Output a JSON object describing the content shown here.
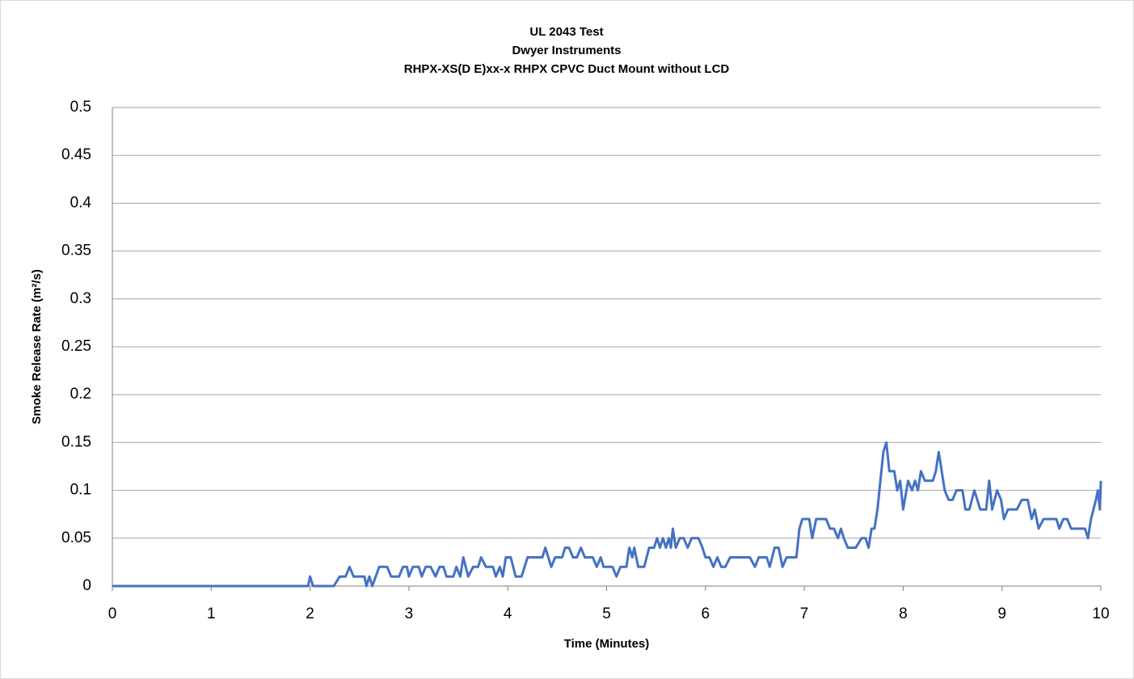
{
  "chart_data": {
    "type": "line",
    "title": [
      "UL 2043 Test",
      "Dwyer Instruments",
      "RHPX-XS(D E)xx-x RHPX CPVC Duct Mount without LCD"
    ],
    "xlabel": "Time (Minutes)",
    "ylabel": "Smoke Release Rate (m²/s)",
    "xlim": [
      0,
      10
    ],
    "xticks": [
      0,
      1,
      2,
      3,
      4,
      5,
      6,
      7,
      8,
      9,
      10
    ],
    "ylim": [
      0,
      0.5
    ],
    "yticks": [
      0,
      0.05,
      0.1,
      0.15,
      0.2,
      0.25,
      0.3,
      0.35,
      0.4,
      0.45,
      0.5
    ],
    "grid": true,
    "x": [
      0,
      1.98,
      2.0,
      2.03,
      2.24,
      2.3,
      2.36,
      2.4,
      2.44,
      2.55,
      2.57,
      2.6,
      2.63,
      2.7,
      2.78,
      2.82,
      2.9,
      2.94,
      2.98,
      3.0,
      3.04,
      3.1,
      3.13,
      3.17,
      3.22,
      3.27,
      3.31,
      3.35,
      3.38,
      3.45,
      3.48,
      3.52,
      3.55,
      3.6,
      3.65,
      3.7,
      3.73,
      3.78,
      3.85,
      3.88,
      3.92,
      3.95,
      3.98,
      4.03,
      4.08,
      4.14,
      4.2,
      4.35,
      4.38,
      4.44,
      4.48,
      4.55,
      4.58,
      4.62,
      4.66,
      4.7,
      4.74,
      4.78,
      4.86,
      4.9,
      4.94,
      4.97,
      5.06,
      5.1,
      5.14,
      5.2,
      5.23,
      5.26,
      5.28,
      5.32,
      5.38,
      5.43,
      5.48,
      5.51,
      5.54,
      5.57,
      5.6,
      5.63,
      5.65,
      5.67,
      5.7,
      5.74,
      5.78,
      5.82,
      5.86,
      5.93,
      5.97,
      6.0,
      6.04,
      6.08,
      6.12,
      6.16,
      6.2,
      6.25,
      6.45,
      6.5,
      6.54,
      6.62,
      6.65,
      6.7,
      6.74,
      6.78,
      6.82,
      6.92,
      6.95,
      6.98,
      7.05,
      7.08,
      7.12,
      7.22,
      7.26,
      7.3,
      7.34,
      7.37,
      7.4,
      7.44,
      7.52,
      7.58,
      7.62,
      7.65,
      7.68,
      7.71,
      7.74,
      7.8,
      7.83,
      7.86,
      7.91,
      7.94,
      7.97,
      8.0,
      8.05,
      8.09,
      8.12,
      8.15,
      8.18,
      8.22,
      8.3,
      8.33,
      8.36,
      8.42,
      8.46,
      8.5,
      8.54,
      8.6,
      8.63,
      8.67,
      8.72,
      8.78,
      8.84,
      8.87,
      8.9,
      8.95,
      8.99,
      9.02,
      9.06,
      9.15,
      9.2,
      9.26,
      9.3,
      9.33,
      9.37,
      9.42,
      9.55,
      9.58,
      9.62,
      9.66,
      9.7,
      9.84,
      9.87,
      9.9,
      9.95,
      9.97,
      9.99,
      10
    ],
    "series": [
      {
        "name": "Smoke Release Rate",
        "color": "#4472c4",
        "values": [
          0,
          0,
          0.01,
          0,
          0,
          0.01,
          0.01,
          0.02,
          0.01,
          0.01,
          0,
          0.01,
          0,
          0.02,
          0.02,
          0.01,
          0.01,
          0.02,
          0.02,
          0.01,
          0.02,
          0.02,
          0.01,
          0.02,
          0.02,
          0.01,
          0.02,
          0.02,
          0.01,
          0.01,
          0.02,
          0.01,
          0.03,
          0.01,
          0.02,
          0.02,
          0.03,
          0.02,
          0.02,
          0.01,
          0.02,
          0.01,
          0.03,
          0.03,
          0.01,
          0.01,
          0.03,
          0.03,
          0.04,
          0.02,
          0.03,
          0.03,
          0.04,
          0.04,
          0.03,
          0.03,
          0.04,
          0.03,
          0.03,
          0.02,
          0.03,
          0.02,
          0.02,
          0.01,
          0.02,
          0.02,
          0.04,
          0.03,
          0.04,
          0.02,
          0.02,
          0.04,
          0.04,
          0.05,
          0.04,
          0.05,
          0.04,
          0.05,
          0.04,
          0.06,
          0.04,
          0.05,
          0.05,
          0.04,
          0.05,
          0.05,
          0.04,
          0.03,
          0.03,
          0.02,
          0.03,
          0.02,
          0.02,
          0.03,
          0.03,
          0.02,
          0.03,
          0.03,
          0.02,
          0.04,
          0.04,
          0.02,
          0.03,
          0.03,
          0.06,
          0.07,
          0.07,
          0.05,
          0.07,
          0.07,
          0.06,
          0.06,
          0.05,
          0.06,
          0.05,
          0.04,
          0.04,
          0.05,
          0.05,
          0.04,
          0.06,
          0.06,
          0.08,
          0.14,
          0.15,
          0.12,
          0.12,
          0.1,
          0.11,
          0.08,
          0.11,
          0.1,
          0.11,
          0.1,
          0.12,
          0.11,
          0.11,
          0.12,
          0.14,
          0.1,
          0.09,
          0.09,
          0.1,
          0.1,
          0.08,
          0.08,
          0.1,
          0.08,
          0.08,
          0.11,
          0.08,
          0.1,
          0.09,
          0.07,
          0.08,
          0.08,
          0.09,
          0.09,
          0.07,
          0.08,
          0.06,
          0.07,
          0.07,
          0.06,
          0.07,
          0.07,
          0.06,
          0.06,
          0.05,
          0.07,
          0.09,
          0.1,
          0.08,
          0.11
        ]
      }
    ]
  }
}
